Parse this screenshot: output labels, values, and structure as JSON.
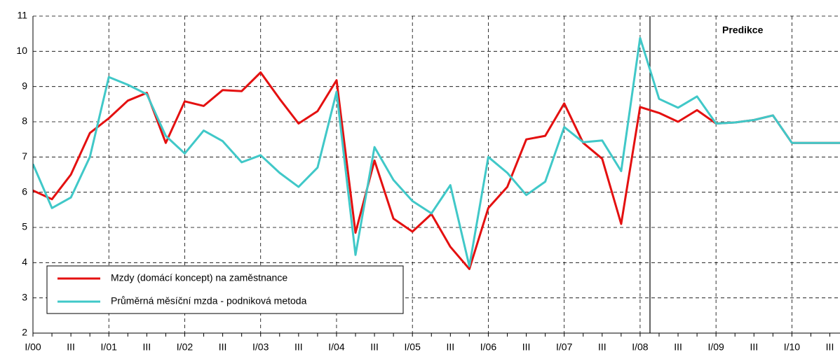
{
  "chart_data": {
    "type": "line",
    "annotations": [
      "Predikce"
    ],
    "categories": [
      "I/00",
      null,
      "III",
      null,
      "I/01",
      null,
      "III",
      null,
      "I/02",
      null,
      "III",
      null,
      "I/03",
      null,
      "III",
      null,
      "I/04",
      null,
      "III",
      null,
      "I/05",
      null,
      "III",
      null,
      "I/06",
      null,
      "III",
      null,
      "I/07",
      null,
      "III",
      null,
      "I/08",
      null,
      "III",
      null,
      "I/09",
      null,
      "III",
      null,
      "I/10",
      null,
      "III",
      null
    ],
    "series": [
      {
        "name": "Mzdy (domácí koncept) na zaměstnance",
        "color": "#e41010",
        "values": [
          6.05,
          5.8,
          6.5,
          7.68,
          8.1,
          8.6,
          8.82,
          7.4,
          8.58,
          8.45,
          8.9,
          8.87,
          9.4,
          8.65,
          7.95,
          8.3,
          9.18,
          4.85,
          6.9,
          5.25,
          4.88,
          5.38,
          4.45,
          3.82,
          5.55,
          6.15,
          7.5,
          7.6,
          8.52,
          7.4,
          6.95,
          5.1,
          8.42,
          8.25,
          8.0,
          8.33,
          7.95,
          7.98,
          8.05,
          8.18,
          7.4,
          7.4,
          7.4,
          7.4
        ]
      },
      {
        "name": "Průměrná měsíční mzda - podniková metoda",
        "color": "#40c8c8",
        "values": [
          6.8,
          5.55,
          5.85,
          7.0,
          9.27,
          9.05,
          8.78,
          7.6,
          7.1,
          7.75,
          7.45,
          6.85,
          7.05,
          6.55,
          6.15,
          6.7,
          8.85,
          4.22,
          7.28,
          6.35,
          5.75,
          5.4,
          6.2,
          3.9,
          7.0,
          6.55,
          5.92,
          6.3,
          7.85,
          7.42,
          7.47,
          6.6,
          10.38,
          8.65,
          8.4,
          8.72,
          7.95,
          7.98,
          8.05,
          8.18,
          7.4,
          7.4,
          7.4,
          7.4
        ]
      }
    ],
    "ylim": [
      2,
      11
    ],
    "yticks": [
      2,
      3,
      4,
      5,
      6,
      7,
      8,
      9,
      10,
      11
    ],
    "grid": true,
    "legend": "lower left"
  }
}
